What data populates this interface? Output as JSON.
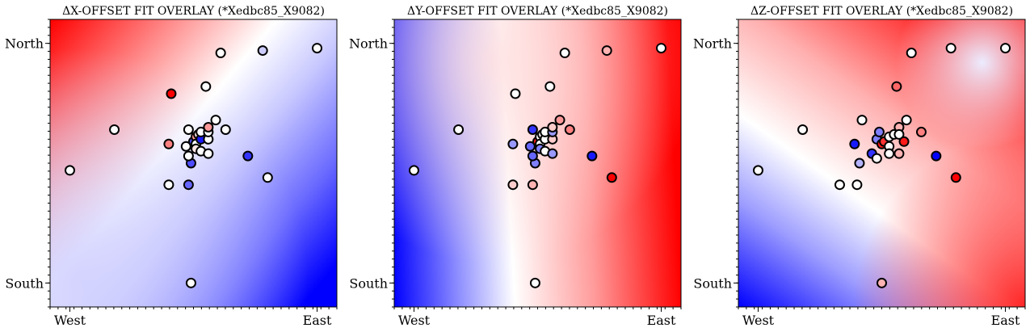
{
  "chart_data": [
    {
      "type": "scatter",
      "title": "ΔX-OFFSET FIT OVERLAY (*Xedbc85_X9082)",
      "x_tick_labels": [
        "West",
        "East"
      ],
      "y_tick_labels": [
        "North",
        "South"
      ],
      "xlim": [
        -0.08,
        1.08
      ],
      "ylim": [
        -0.1,
        1.1
      ],
      "colormap": "bwr",
      "background": "fitted ΔX surface, red in the north-west, blue in the east",
      "point_values_scale": "-1 (blue) to 1 (red)",
      "points": [
        {
          "x": 0.0,
          "y": 0.47,
          "v": 0.0
        },
        {
          "x": 0.18,
          "y": 0.64,
          "v": 0.0
        },
        {
          "x": 0.4,
          "y": 0.41,
          "v": 0.0
        },
        {
          "x": 0.48,
          "y": 0.41,
          "v": -0.6
        },
        {
          "x": 0.49,
          "y": 0.5,
          "v": -0.7
        },
        {
          "x": 0.4,
          "y": 0.58,
          "v": 0.5
        },
        {
          "x": 0.41,
          "y": 0.79,
          "v": 1.0
        },
        {
          "x": 0.47,
          "y": 0.57,
          "v": 0.0
        },
        {
          "x": 0.48,
          "y": 0.64,
          "v": 0.0
        },
        {
          "x": 0.48,
          "y": 0.53,
          "v": 0.0
        },
        {
          "x": 0.5,
          "y": 0.59,
          "v": -0.7
        },
        {
          "x": 0.51,
          "y": 0.61,
          "v": 0.4
        },
        {
          "x": 0.51,
          "y": 0.58,
          "v": 0.0
        },
        {
          "x": 0.51,
          "y": 0.56,
          "v": 0.1
        },
        {
          "x": 0.52,
          "y": 0.62,
          "v": 0.1
        },
        {
          "x": 0.53,
          "y": 0.6,
          "v": -0.9
        },
        {
          "x": 0.53,
          "y": 0.55,
          "v": 0.0
        },
        {
          "x": 0.53,
          "y": 0.63,
          "v": 0.0
        },
        {
          "x": 0.56,
          "y": 0.54,
          "v": 0.0
        },
        {
          "x": 0.56,
          "y": 0.6,
          "v": 0.0
        },
        {
          "x": 0.56,
          "y": 0.63,
          "v": 0.0
        },
        {
          "x": 0.56,
          "y": 0.65,
          "v": 0.4
        },
        {
          "x": 0.59,
          "y": 0.68,
          "v": 0.0
        },
        {
          "x": 0.63,
          "y": 0.64,
          "v": 0.0
        },
        {
          "x": 0.55,
          "y": 0.82,
          "v": 0.0
        },
        {
          "x": 0.61,
          "y": 0.96,
          "v": 0.0
        },
        {
          "x": 0.78,
          "y": 0.97,
          "v": -0.2
        },
        {
          "x": 1.0,
          "y": 0.98,
          "v": 0.0
        },
        {
          "x": 0.72,
          "y": 0.53,
          "v": -0.8
        },
        {
          "x": 0.8,
          "y": 0.44,
          "v": 0.0
        },
        {
          "x": 0.49,
          "y": 0.0,
          "v": 0.0
        }
      ]
    },
    {
      "type": "scatter",
      "title": "ΔY-OFFSET FIT OVERLAY (*Xedbc85_X9082)",
      "x_tick_labels": [
        "West",
        "East"
      ],
      "y_tick_labels": [
        "North",
        "South"
      ],
      "xlim": [
        -0.08,
        1.08
      ],
      "ylim": [
        -0.1,
        1.1
      ],
      "colormap": "bwr",
      "background": "fitted ΔY surface, blue in the south-west, red in the south-east",
      "point_values_scale": "-1 (blue) to 1 (red)",
      "points": [
        {
          "x": 0.0,
          "y": 0.47,
          "v": 0.0
        },
        {
          "x": 0.18,
          "y": 0.64,
          "v": 0.0
        },
        {
          "x": 0.4,
          "y": 0.41,
          "v": 0.2
        },
        {
          "x": 0.48,
          "y": 0.41,
          "v": 0.3
        },
        {
          "x": 0.49,
          "y": 0.5,
          "v": -0.5
        },
        {
          "x": 0.4,
          "y": 0.58,
          "v": -0.4
        },
        {
          "x": 0.41,
          "y": 0.79,
          "v": 0.0
        },
        {
          "x": 0.47,
          "y": 0.57,
          "v": -0.6
        },
        {
          "x": 0.48,
          "y": 0.64,
          "v": -0.8
        },
        {
          "x": 0.48,
          "y": 0.53,
          "v": -0.6
        },
        {
          "x": 0.5,
          "y": 0.59,
          "v": 0.9
        },
        {
          "x": 0.51,
          "y": 0.61,
          "v": 0.0
        },
        {
          "x": 0.51,
          "y": 0.58,
          "v": 0.0
        },
        {
          "x": 0.51,
          "y": 0.56,
          "v": -0.5
        },
        {
          "x": 0.52,
          "y": 0.62,
          "v": 0.0
        },
        {
          "x": 0.53,
          "y": 0.6,
          "v": 0.0
        },
        {
          "x": 0.53,
          "y": 0.55,
          "v": 0.0
        },
        {
          "x": 0.53,
          "y": 0.63,
          "v": 0.0
        },
        {
          "x": 0.56,
          "y": 0.54,
          "v": -0.4
        },
        {
          "x": 0.56,
          "y": 0.6,
          "v": 0.2
        },
        {
          "x": 0.56,
          "y": 0.63,
          "v": -0.4
        },
        {
          "x": 0.56,
          "y": 0.65,
          "v": 0.2
        },
        {
          "x": 0.59,
          "y": 0.68,
          "v": 0.4
        },
        {
          "x": 0.63,
          "y": 0.64,
          "v": 0.5
        },
        {
          "x": 0.55,
          "y": 0.82,
          "v": 0.0
        },
        {
          "x": 0.61,
          "y": 0.96,
          "v": 0.0
        },
        {
          "x": 0.78,
          "y": 0.97,
          "v": 0.3
        },
        {
          "x": 1.0,
          "y": 0.98,
          "v": 0.0
        },
        {
          "x": 0.72,
          "y": 0.53,
          "v": -0.9
        },
        {
          "x": 0.8,
          "y": 0.44,
          "v": 1.0
        },
        {
          "x": 0.49,
          "y": 0.0,
          "v": 0.0
        }
      ]
    },
    {
      "type": "scatter",
      "title": "ΔZ-OFFSET FIT OVERLAY (*Xedbc85_X9082)",
      "x_tick_labels": [
        "West",
        "East"
      ],
      "y_tick_labels": [
        "North",
        "South"
      ],
      "xlim": [
        -0.08,
        1.08
      ],
      "ylim": [
        -0.1,
        1.1
      ],
      "colormap": "bwr",
      "background": "fitted ΔZ surface, red along the north and east, blue in the south-west",
      "point_values_scale": "-1 (blue) to 1 (red)",
      "points": [
        {
          "x": 0.0,
          "y": 0.47,
          "v": 0.0
        },
        {
          "x": 0.18,
          "y": 0.64,
          "v": 0.0
        },
        {
          "x": 0.33,
          "y": 0.41,
          "v": 0.0
        },
        {
          "x": 0.4,
          "y": 0.41,
          "v": 0.0
        },
        {
          "x": 0.41,
          "y": 0.5,
          "v": -0.3
        },
        {
          "x": 0.39,
          "y": 0.58,
          "v": -0.9
        },
        {
          "x": 0.42,
          "y": 0.68,
          "v": 0.0
        },
        {
          "x": 0.46,
          "y": 0.54,
          "v": -0.8
        },
        {
          "x": 0.48,
          "y": 0.6,
          "v": -0.5
        },
        {
          "x": 0.48,
          "y": 0.52,
          "v": 0.0
        },
        {
          "x": 0.5,
          "y": 0.58,
          "v": 0.9
        },
        {
          "x": 0.49,
          "y": 0.63,
          "v": -0.5
        },
        {
          "x": 0.51,
          "y": 0.59,
          "v": 0.8
        },
        {
          "x": 0.53,
          "y": 0.61,
          "v": 0.0
        },
        {
          "x": 0.53,
          "y": 0.57,
          "v": 0.0
        },
        {
          "x": 0.53,
          "y": 0.54,
          "v": 0.0
        },
        {
          "x": 0.55,
          "y": 0.62,
          "v": 0.0
        },
        {
          "x": 0.57,
          "y": 0.65,
          "v": 0.3
        },
        {
          "x": 0.57,
          "y": 0.54,
          "v": 0.3
        },
        {
          "x": 0.57,
          "y": 0.62,
          "v": 0.0
        },
        {
          "x": 0.59,
          "y": 0.59,
          "v": 0.9
        },
        {
          "x": 0.6,
          "y": 0.68,
          "v": 0.0
        },
        {
          "x": 0.66,
          "y": 0.63,
          "v": 0.5
        },
        {
          "x": 0.56,
          "y": 0.82,
          "v": 0.6
        },
        {
          "x": 0.62,
          "y": 0.96,
          "v": 0.0
        },
        {
          "x": 0.78,
          "y": 0.98,
          "v": 0.0
        },
        {
          "x": 1.0,
          "y": 0.98,
          "v": 0.0
        },
        {
          "x": 0.72,
          "y": 0.53,
          "v": -1.0
        },
        {
          "x": 0.8,
          "y": 0.44,
          "v": 1.0
        },
        {
          "x": 0.5,
          "y": 0.0,
          "v": 0.3
        }
      ]
    }
  ]
}
